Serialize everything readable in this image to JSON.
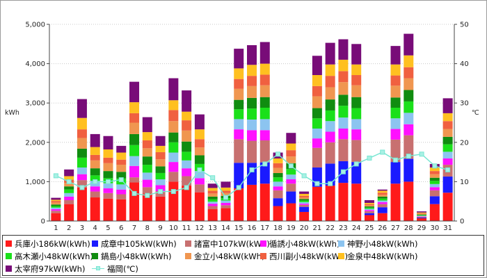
{
  "chart_data": {
    "type": "bar",
    "stacked": true,
    "ylabel": "kWh",
    "y2label": "℃",
    "ylim": [
      0,
      5000
    ],
    "y2lim": [
      0,
      50
    ],
    "yticks": [
      "0",
      "1,000",
      "2,000",
      "3,000",
      "4,000",
      "5,000"
    ],
    "y2ticks": [
      "0",
      "10",
      "20",
      "30",
      "40",
      "50"
    ],
    "grid": true,
    "legend_position": "bottom",
    "categories": [
      "1",
      "2",
      "3",
      "4",
      "5",
      "6",
      "7",
      "8",
      "9",
      "10",
      "11",
      "12",
      "13",
      "14",
      "15",
      "16",
      "17",
      "18",
      "19",
      "20",
      "21",
      "22",
      "23",
      "24",
      "25",
      "26",
      "27",
      "28",
      "29",
      "30",
      "31"
    ],
    "series": [
      {
        "name": "兵庫小186kW(kWh)",
        "color": "#ff1a1a",
        "values": [
          200,
          430,
          850,
          600,
          570,
          550,
          980,
          700,
          620,
          1000,
          900,
          730,
          300,
          330,
          830,
          920,
          950,
          380,
          450,
          230,
          870,
          900,
          970,
          950,
          150,
          200,
          950,
          1000,
          70,
          430,
          720
        ]
      },
      {
        "name": "成章中105kW(kWh)",
        "color": "#1a1aff",
        "values": [
          0,
          0,
          0,
          0,
          0,
          0,
          0,
          0,
          0,
          0,
          0,
          0,
          0,
          0,
          650,
          560,
          540,
          200,
          300,
          130,
          490,
          560,
          550,
          550,
          50,
          150,
          550,
          580,
          20,
          200,
          410
        ]
      },
      {
        "name": "諸富中107kW(kWh)",
        "color": "#c87070",
        "values": [
          60,
          100,
          190,
          150,
          140,
          130,
          130,
          160,
          140,
          250,
          240,
          200,
          80,
          70,
          600,
          560,
          560,
          200,
          200,
          50,
          500,
          540,
          560,
          560,
          50,
          80,
          570,
          600,
          20,
          150,
          300
        ]
      },
      {
        "name": "循誘小48kW(kWh)",
        "color": "#ff10ff",
        "values": [
          40,
          90,
          150,
          130,
          120,
          120,
          290,
          190,
          150,
          250,
          200,
          160,
          60,
          60,
          250,
          270,
          260,
          100,
          110,
          30,
          240,
          270,
          270,
          270,
          30,
          50,
          270,
          280,
          10,
          80,
          160
        ]
      },
      {
        "name": "神野小48kW(kWh)",
        "color": "#8cc4f0",
        "values": [
          40,
          90,
          170,
          140,
          130,
          130,
          250,
          180,
          150,
          240,
          200,
          180,
          50,
          60,
          260,
          270,
          280,
          120,
          120,
          40,
          250,
          270,
          280,
          260,
          30,
          40,
          270,
          290,
          15,
          80,
          170
        ]
      },
      {
        "name": "高木瀬小48kW(kWh)",
        "color": "#1ae01a",
        "values": [
          40,
          90,
          250,
          140,
          130,
          150,
          280,
          200,
          160,
          260,
          220,
          180,
          60,
          60,
          250,
          280,
          290,
          110,
          140,
          40,
          260,
          270,
          300,
          280,
          30,
          50,
          270,
          290,
          15,
          80,
          190
        ]
      },
      {
        "name": "鍋島小48kW(kWh)",
        "color": "#108c10",
        "values": [
          40,
          80,
          230,
          180,
          180,
          170,
          280,
          210,
          170,
          250,
          260,
          220,
          70,
          60,
          240,
          270,
          270,
          110,
          150,
          40,
          260,
          280,
          280,
          280,
          30,
          50,
          260,
          290,
          15,
          80,
          190
        ]
      },
      {
        "name": "金立小48kW(kWh)",
        "color": "#f09650",
        "values": [
          50,
          90,
          270,
          200,
          200,
          180,
          290,
          210,
          180,
          290,
          280,
          200,
          80,
          70,
          280,
          300,
          300,
          130,
          170,
          40,
          300,
          310,
          320,
          300,
          30,
          50,
          300,
          300,
          15,
          90,
          200
        ]
      },
      {
        "name": "西川副小48kW(kWh)",
        "color": "#f06040",
        "values": [
          40,
          80,
          220,
          140,
          140,
          130,
          240,
          200,
          180,
          280,
          260,
          210,
          70,
          60,
          250,
          260,
          270,
          120,
          160,
          40,
          260,
          290,
          280,
          260,
          30,
          50,
          260,
          280,
          15,
          80,
          200
        ]
      },
      {
        "name": "金泉中48kW(kWh)",
        "color": "#ffc020",
        "values": [
          30,
          90,
          290,
          200,
          210,
          180,
          280,
          210,
          160,
          250,
          220,
          250,
          70,
          80,
          270,
          280,
          280,
          120,
          170,
          50,
          280,
          290,
          290,
          270,
          30,
          50,
          280,
          300,
          20,
          90,
          200
        ]
      },
      {
        "name": "太宰府97kW(kWh)",
        "color": "#780c78",
        "values": [
          50,
          170,
          480,
          330,
          340,
          170,
          520,
          380,
          250,
          560,
          540,
          380,
          110,
          150,
          500,
          500,
          550,
          150,
          270,
          60,
          490,
          550,
          520,
          520,
          70,
          30,
          470,
          550,
          30,
          90,
          380
        ]
      }
    ],
    "line_series": {
      "name": "福岡(℃)",
      "color": "#78e6d2",
      "axis": "y2",
      "values": [
        11.5,
        10,
        8.5,
        10,
        10,
        10.5,
        7,
        6.5,
        7.5,
        7.5,
        8.5,
        13,
        11,
        6,
        8.5,
        13,
        14.5,
        17,
        14,
        11.5,
        9.5,
        9.5,
        12.5,
        14.5,
        16,
        17.5,
        15.5,
        16.5,
        17,
        14,
        13
      ]
    }
  }
}
